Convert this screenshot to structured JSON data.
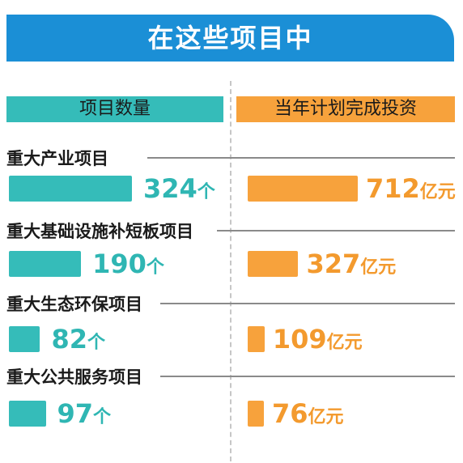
{
  "title": "在这些项目中",
  "headers": {
    "left": "项目数量",
    "right": "当年计划完成投资"
  },
  "units": {
    "count": "个",
    "investment": "亿元"
  },
  "chart_data": {
    "type": "bar",
    "categories": [
      "重大产业项目",
      "重大基础设施补短板项目",
      "重大生态环保项目",
      "重大公共服务项目"
    ],
    "series": [
      {
        "name": "项目数量",
        "unit": "个",
        "values": [
          324,
          190,
          82,
          97
        ],
        "color": "#35bcb9"
      },
      {
        "name": "当年计划完成投资",
        "unit": "亿元",
        "values": [
          712,
          327,
          109,
          76
        ],
        "color": "#f7a23c"
      }
    ]
  }
}
